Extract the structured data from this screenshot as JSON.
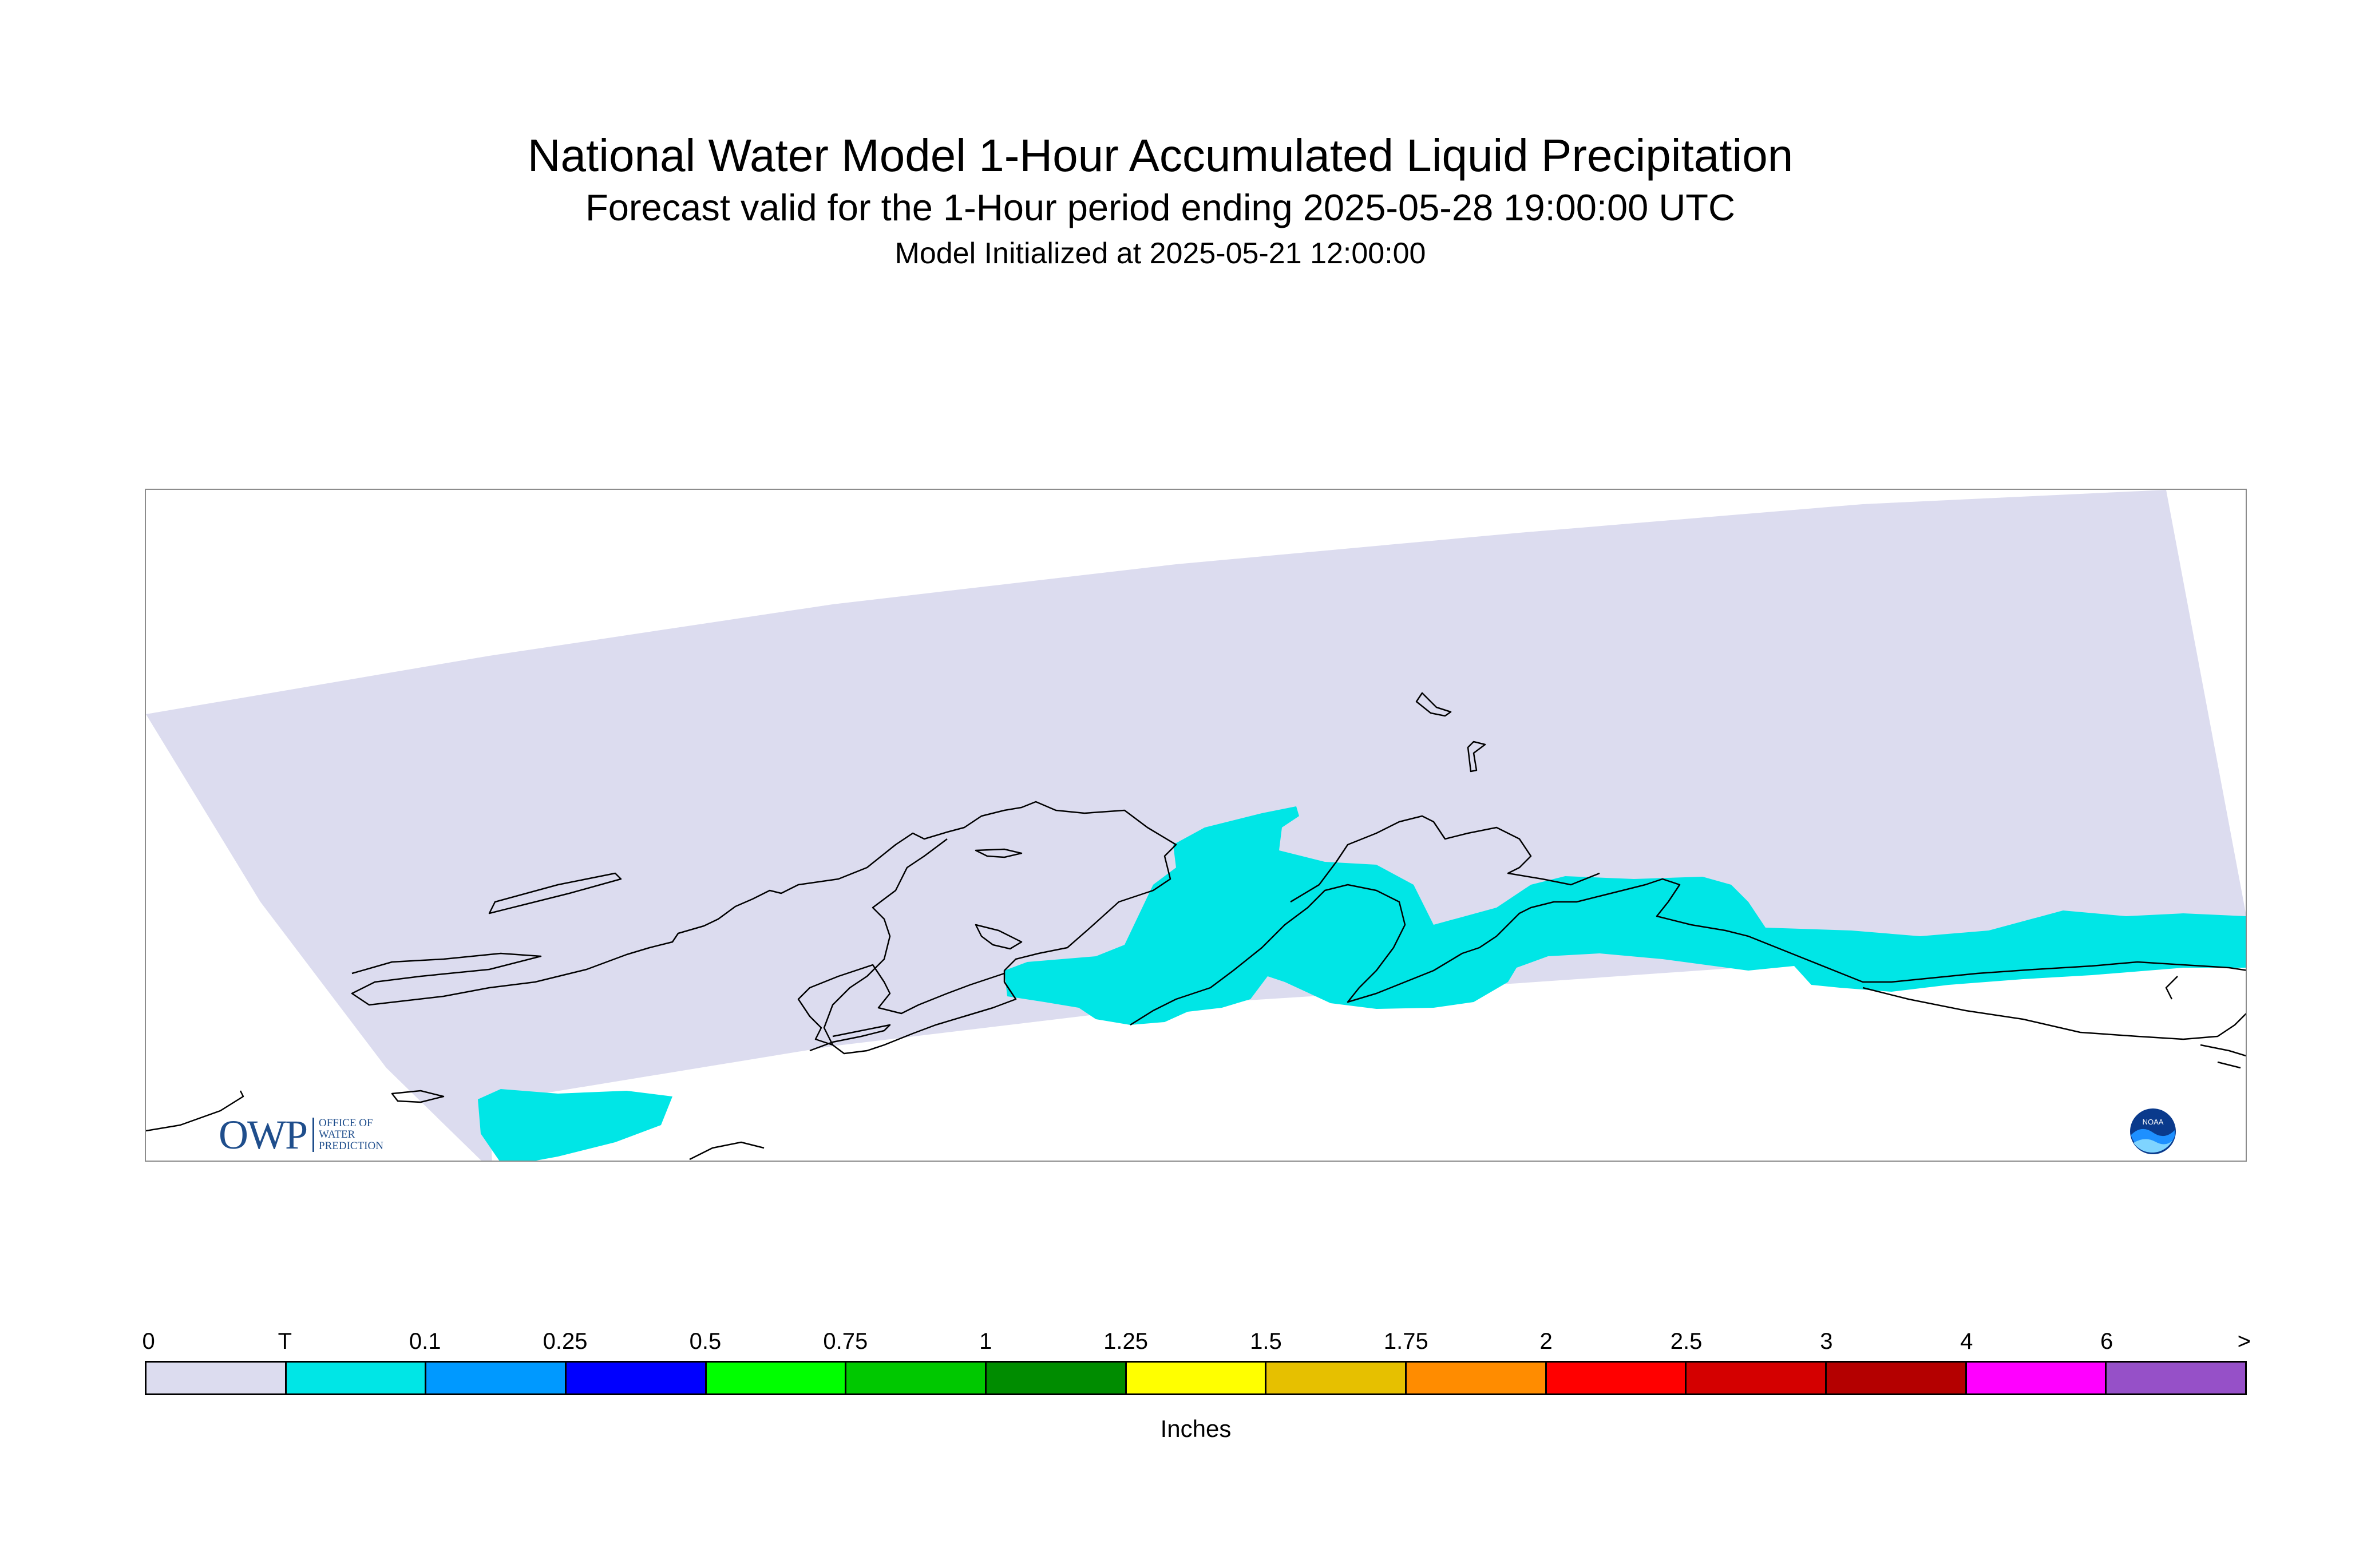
{
  "title": {
    "main": "National Water Model 1-Hour Accumulated Liquid Precipitation",
    "forecast": "Forecast valid for the 1-Hour period ending 2025-05-28 19:00:00 UTC",
    "initialized": "Model Initialized at 2025-05-21 12:00:00"
  },
  "map": {
    "region": "Alaska",
    "domain_color": "#dcdcef",
    "precip_color": "#00e6e6",
    "coastline_color": "#000000"
  },
  "legend": {
    "units": "Inches",
    "ticks": [
      "0",
      "T",
      "0.1",
      "0.25",
      "0.5",
      "0.75",
      "1",
      "1.25",
      "1.5",
      "1.75",
      "2",
      "2.5",
      "3",
      "4",
      "6",
      ">"
    ],
    "colors": [
      "#dcdcef",
      "#00e6e6",
      "#0099ff",
      "#0000ff",
      "#00ff00",
      "#00c800",
      "#008c00",
      "#ffff00",
      "#e6c000",
      "#ff8c00",
      "#ff0000",
      "#d40000",
      "#b40000",
      "#ff00ff",
      "#9650c8"
    ]
  },
  "logos": {
    "owp_mark": "OWP",
    "owp_lines": [
      "Office of",
      "Water",
      "Prediction"
    ],
    "noaa_text": "NOAA",
    "noaa_icon": "noaa-logo-icon"
  }
}
